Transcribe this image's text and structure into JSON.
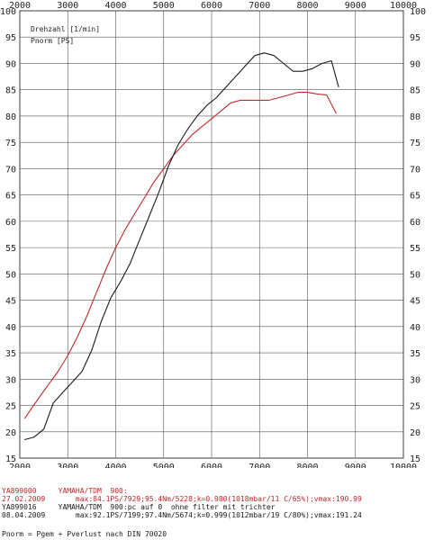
{
  "chart_data": {
    "type": "line",
    "x_label": "Drehzahl [1/min]",
    "y_label": "Pnorm [PS]",
    "xlim": [
      2000,
      10000
    ],
    "ylim": [
      15,
      100
    ],
    "x_ticks": [
      2000,
      3000,
      4000,
      5000,
      6000,
      7000,
      8000,
      9000,
      10000
    ],
    "y_ticks": [
      15,
      20,
      25,
      30,
      35,
      40,
      45,
      50,
      55,
      60,
      65,
      70,
      75,
      80,
      85,
      90,
      95,
      100
    ],
    "grid": true,
    "series": [
      {
        "id": "YA899000",
        "color": "#c0282c",
        "x": [
          2100,
          2400,
          2800,
          3000,
          3200,
          3400,
          3600,
          3800,
          4000,
          4200,
          4400,
          4600,
          4800,
          5000,
          5200,
          5400,
          5600,
          5800,
          6000,
          6200,
          6400,
          6600,
          6800,
          7000,
          7200,
          7400,
          7600,
          7800,
          8000,
          8200,
          8400,
          8600
        ],
        "y": [
          22.5,
          26.5,
          31.5,
          34.5,
          38,
          42,
          46.5,
          51,
          55,
          58.5,
          61.5,
          64.5,
          67.5,
          70,
          72.5,
          74.5,
          76.5,
          78,
          79.5,
          81,
          82.5,
          83,
          83,
          83,
          83,
          83.5,
          84,
          84.5,
          84.5,
          84.2,
          84,
          80.5
        ]
      },
      {
        "id": "YA899016",
        "color": "#1a1a1a",
        "x": [
          2100,
          2300,
          2500,
          2700,
          2900,
          3100,
          3300,
          3500,
          3700,
          3900,
          4100,
          4300,
          4500,
          4700,
          4900,
          5100,
          5300,
          5500,
          5700,
          5900,
          6100,
          6300,
          6500,
          6700,
          6900,
          7100,
          7300,
          7500,
          7700,
          7900,
          8100,
          8300,
          8500,
          8650
        ],
        "y": [
          18.5,
          19,
          20.5,
          25.5,
          27.5,
          29.5,
          31.5,
          35.5,
          41,
          45.5,
          48.5,
          52,
          56.5,
          61,
          65.5,
          70.5,
          74.5,
          77.5,
          80,
          82,
          83.5,
          85.5,
          87.5,
          89.5,
          91.5,
          92,
          91.5,
          90,
          88.5,
          88.5,
          89,
          90,
          90.5,
          85.5
        ]
      }
    ]
  },
  "header": {
    "line1": "Drehzahl [1/min]",
    "line2": "Pnorm [PS]"
  },
  "footer": {
    "run1_id": "YA899000",
    "run1_vehicle": "YAMAHA/TDM  900:",
    "run1_date": "27.02.2009",
    "run1_stats": "max:84.1PS/7929;95.4Nm/5228;k=0.980(1018mbar/11 C/65%);vmax:190.99",
    "run2_id": "YA899016",
    "run2_vehicle": "YAMAHA/TDM  900:pc auf 0  ohne filter mit trichter",
    "run2_date": "08.04.2009",
    "run2_stats": "max:92.1PS/7199;97.4Nm/5674;k=0.999(1012mbar/19 C/80%);vmax:191.24",
    "formula": "Pnorm = Pgem + Pverlust nach DIN 70020"
  }
}
